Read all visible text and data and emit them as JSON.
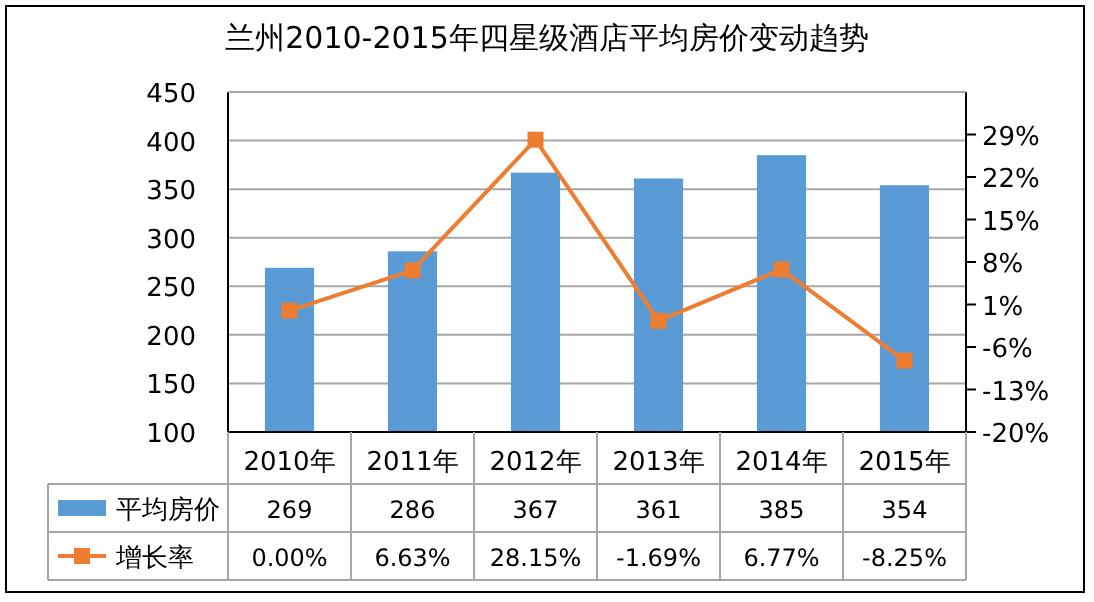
{
  "chart_data": {
    "type": "bar",
    "title": "兰州2010-2015年四星级酒店平均房价变动趋势",
    "categories": [
      "2010年",
      "2011年",
      "2012年",
      "2013年",
      "2014年",
      "2015年"
    ],
    "series": [
      {
        "name": "平均房价",
        "color": "#5b9bd5",
        "values": [
          269,
          286,
          367,
          361,
          385,
          354
        ],
        "value_labels": [
          "269",
          "286",
          "367",
          "361",
          "385",
          "354"
        ]
      },
      {
        "name": "增长率",
        "type": "line",
        "axis": "y2",
        "marker": "square",
        "color": "#ed7d31",
        "values": [
          0,
          6.63,
          28.15,
          -1.69,
          6.77,
          -8.25
        ],
        "value_labels": [
          "0.00%",
          "6.63%",
          "28.15%",
          "-1.69%",
          "6.77%",
          "-8.25%"
        ]
      }
    ],
    "ylim": [
      100,
      450
    ],
    "yticks": [
      100,
      150,
      200,
      250,
      300,
      350,
      400,
      450
    ],
    "y2lim": [
      -20,
      36
    ],
    "y2ticks": [
      {
        "value": -20,
        "label": "-20%"
      },
      {
        "value": -13,
        "label": "-13%"
      },
      {
        "value": -6,
        "label": "-6%"
      },
      {
        "value": 1,
        "label": "1%"
      },
      {
        "value": 8,
        "label": "8%"
      },
      {
        "value": 15,
        "label": "15%"
      },
      {
        "value": 22,
        "label": "22%"
      },
      {
        "value": 29,
        "label": "29%"
      }
    ],
    "grid": "y",
    "legend": "bottom"
  }
}
